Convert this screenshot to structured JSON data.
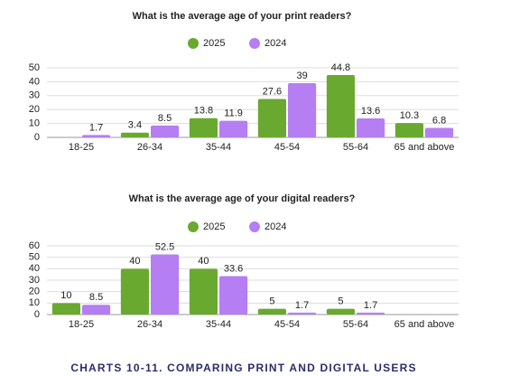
{
  "chart_data": [
    {
      "type": "bar",
      "title": "What is the average age of your print readers?",
      "categories": [
        "18-25",
        "26-34",
        "35-44",
        "45-54",
        "55-64",
        "65 and above"
      ],
      "series": [
        {
          "name": "2025",
          "color": "#6aa92f",
          "values": [
            null,
            3.4,
            13.8,
            27.6,
            44.8,
            10.3
          ]
        },
        {
          "name": "2024",
          "color": "#b57ef2",
          "values": [
            1.7,
            8.5,
            11.9,
            39,
            13.6,
            6.8
          ]
        }
      ],
      "ylim": [
        0,
        50
      ],
      "yticks": [
        0,
        10,
        20,
        30,
        40,
        50
      ],
      "grid": true,
      "legend": "top"
    },
    {
      "type": "bar",
      "title": "What is the average age of your digital readers?",
      "categories": [
        "18-25",
        "26-34",
        "35-44",
        "45-54",
        "55-64",
        "65 and above"
      ],
      "series": [
        {
          "name": "2025",
          "color": "#6aa92f",
          "values": [
            10,
            40,
            40,
            5,
            5,
            null
          ]
        },
        {
          "name": "2024",
          "color": "#b57ef2",
          "values": [
            8.5,
            52.5,
            33.6,
            1.7,
            1.7,
            null
          ]
        }
      ],
      "ylim": [
        0,
        60
      ],
      "yticks": [
        0,
        10,
        20,
        30,
        40,
        50,
        60
      ],
      "grid": true,
      "legend": "top"
    }
  ],
  "caption": "CHARTS 10-11. COMPARING PRINT AND DIGITAL USERS"
}
